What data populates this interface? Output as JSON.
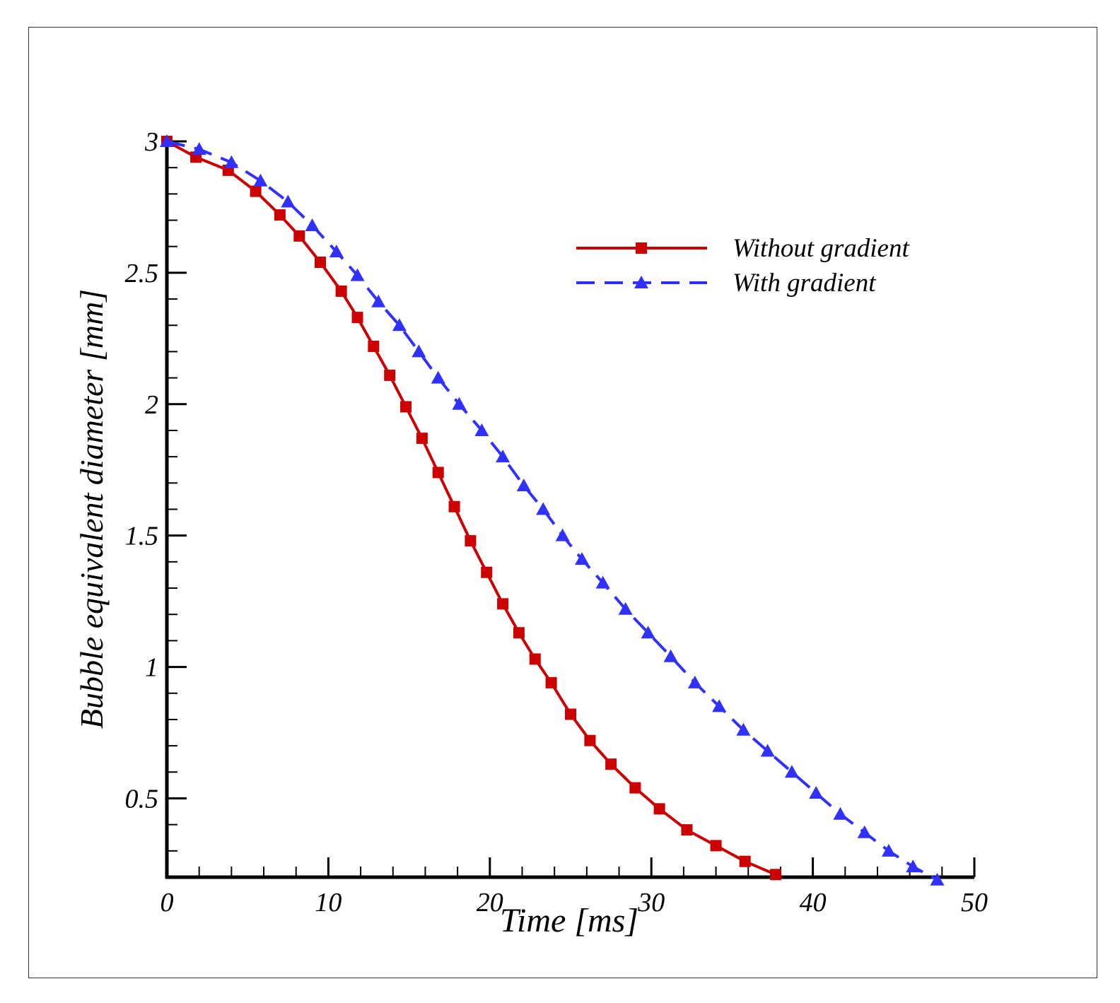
{
  "chart_data": {
    "type": "line",
    "title": "",
    "xlabel": "Time [ms]",
    "ylabel": "Bubble equivalent diameter [mm]",
    "xlim": [
      0,
      50
    ],
    "ylim": [
      0.2,
      3
    ],
    "xticks": [
      0,
      10,
      20,
      30,
      40,
      50
    ],
    "xtick_labels": [
      "0",
      "10",
      "20",
      "30",
      "40",
      "50"
    ],
    "yticks": [
      0.5,
      1,
      1.5,
      2,
      2.5,
      3
    ],
    "ytick_labels": [
      "0.5",
      "1",
      "1.5",
      "2",
      "2.5",
      "3"
    ],
    "grid": false,
    "legend_position": "top-right",
    "series": [
      {
        "name": "Without gradient",
        "color": "#cc0000",
        "line_style": "solid",
        "marker": "square",
        "x": [
          0,
          1.8,
          3.8,
          5.5,
          7.0,
          8.2,
          9.5,
          10.8,
          11.8,
          12.8,
          13.8,
          14.8,
          15.8,
          16.8,
          17.8,
          18.8,
          19.8,
          20.8,
          21.8,
          22.8,
          23.8,
          25.0,
          26.2,
          27.5,
          29.0,
          30.5,
          32.2,
          34.0,
          35.8,
          37.7
        ],
        "y": [
          3.0,
          2.94,
          2.89,
          2.81,
          2.72,
          2.64,
          2.54,
          2.43,
          2.33,
          2.22,
          2.11,
          1.99,
          1.87,
          1.74,
          1.61,
          1.48,
          1.36,
          1.24,
          1.13,
          1.03,
          0.94,
          0.82,
          0.72,
          0.63,
          0.54,
          0.46,
          0.38,
          0.32,
          0.26,
          0.21
        ]
      },
      {
        "name": "With gradient",
        "color": "#3030ff",
        "line_style": "dashed",
        "marker": "triangle",
        "x": [
          0,
          2.0,
          4.0,
          5.8,
          7.5,
          9.0,
          10.5,
          11.8,
          13.1,
          14.4,
          15.6,
          16.8,
          18.1,
          19.5,
          20.8,
          22.1,
          23.3,
          24.5,
          25.7,
          27.0,
          28.4,
          29.8,
          31.2,
          32.7,
          34.2,
          35.7,
          37.2,
          38.7,
          40.2,
          41.7,
          43.2,
          44.7,
          46.2,
          47.7
        ],
        "y": [
          3.0,
          2.97,
          2.92,
          2.85,
          2.77,
          2.68,
          2.58,
          2.49,
          2.39,
          2.3,
          2.2,
          2.1,
          2.0,
          1.9,
          1.8,
          1.69,
          1.6,
          1.5,
          1.41,
          1.32,
          1.22,
          1.13,
          1.04,
          0.94,
          0.85,
          0.76,
          0.68,
          0.6,
          0.52,
          0.44,
          0.37,
          0.3,
          0.24,
          0.19
        ]
      }
    ]
  }
}
